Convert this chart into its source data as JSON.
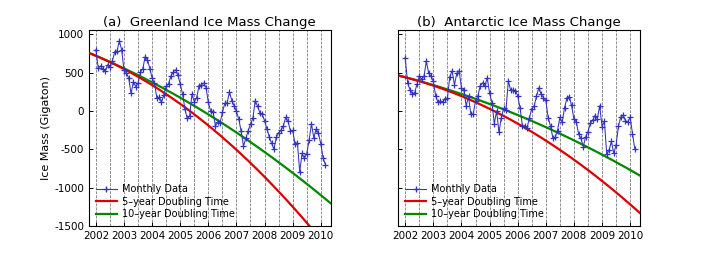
{
  "title_a": "(a)  Greenland Ice Mass Change",
  "title_b": "(b)  Antarctic Ice Mass Change",
  "ylabel": "Ice Mass (Gigaton)",
  "ylim": [
    -1500,
    1050
  ],
  "yticks": [
    -1500,
    -1000,
    -500,
    0,
    500,
    1000
  ],
  "xlim_start": 2001.75,
  "xlim_end": 2010.35,
  "xticks": [
    2002,
    2003,
    2004,
    2005,
    2006,
    2007,
    2008,
    2009,
    2010
  ],
  "background_color": "#ffffff",
  "monthly_color": "#3333bb",
  "red_line_color": "#dd0000",
  "green_line_color": "#008800",
  "title_fontsize": 9.5,
  "label_fontsize": 8,
  "tick_fontsize": 7.5,
  "legend_fontsize": 7,
  "grland_M0": 720,
  "grland_loss_linear": 155,
  "grland_accel_5": 18,
  "grland_accel_10": 9,
  "grland_seasonal_amp": 210,
  "grland_seasonal_phase": 0.55,
  "grland_noise": 55,
  "ant_M0": 440,
  "ant_loss_linear": 95,
  "ant_accel_5": 14,
  "ant_accel_10": 7,
  "ant_seasonal_amp": 250,
  "ant_seasonal_phase": 0.55,
  "ant_noise": 80
}
